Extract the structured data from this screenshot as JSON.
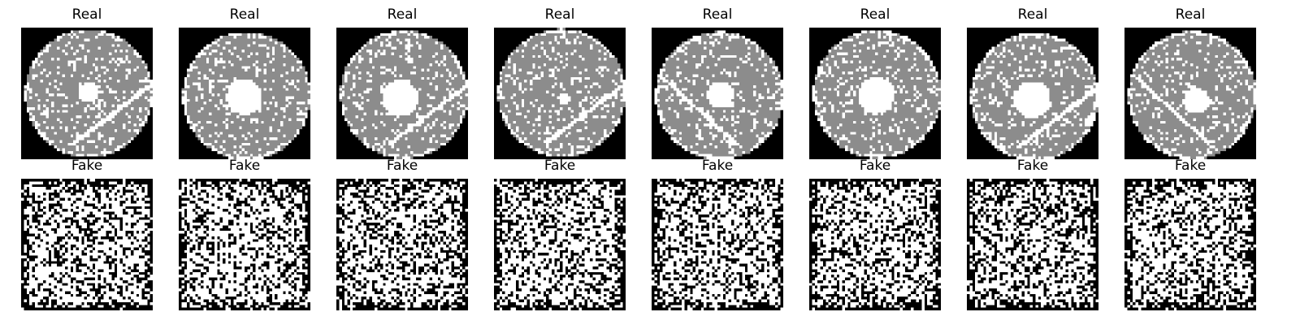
{
  "figure": {
    "rows": [
      {
        "kind": "real",
        "panels": [
          {
            "title": "Real",
            "hole_size": "small",
            "streak": "lower-right"
          },
          {
            "title": "Real",
            "hole_size": "large",
            "streak": "none"
          },
          {
            "title": "Real",
            "hole_size": "large",
            "streak": "lower-right"
          },
          {
            "title": "Real",
            "hole_size": "tiny",
            "streak": "lower-right"
          },
          {
            "title": "Real",
            "hole_size": "medium",
            "streak": "lower-left"
          },
          {
            "title": "Real",
            "hole_size": "large",
            "streak": "none"
          },
          {
            "title": "Real",
            "hole_size": "large",
            "streak": "lower-right"
          },
          {
            "title": "Real",
            "hole_size": "medium",
            "streak": "lower-left"
          }
        ]
      },
      {
        "kind": "fake",
        "panels": [
          {
            "title": "Fake"
          },
          {
            "title": "Fake"
          },
          {
            "title": "Fake"
          },
          {
            "title": "Fake"
          },
          {
            "title": "Fake"
          },
          {
            "title": "Fake"
          },
          {
            "title": "Fake"
          },
          {
            "title": "Fake"
          }
        ]
      }
    ],
    "colors": {
      "background": "#000000",
      "disc_gray": "#8c8c8c",
      "speckle_white": "#ffffff"
    }
  }
}
